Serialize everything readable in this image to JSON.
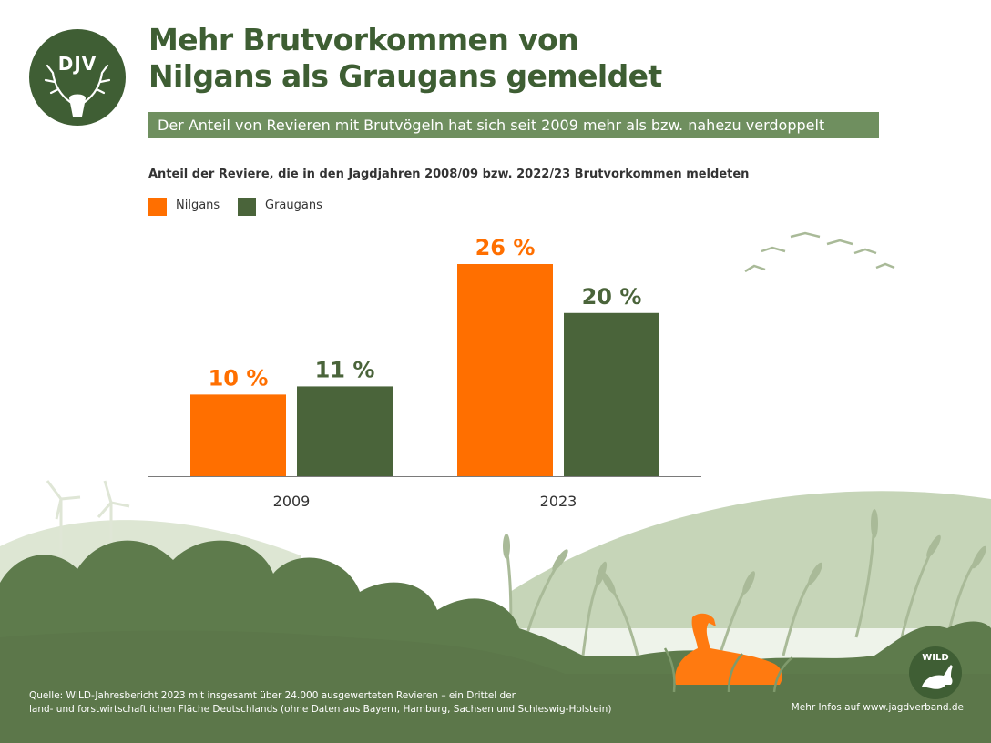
{
  "header": {
    "logo_text": "DJV",
    "title_line1": "Mehr Brutvorkommen von",
    "title_line2": "Nilgans als Graugans gemeldet",
    "subtitle": "Der Anteil von Revieren mit Brutvögeln hat sich seit 2009 mehr als bzw. nahezu verdoppelt"
  },
  "colors": {
    "nilgans": "#ff6f00",
    "graugans": "#4a643a",
    "title_green": "#3e5e33",
    "subtitle_bg": "#6f8f5f"
  },
  "chart_data": {
    "type": "bar",
    "title": "Anteil der Reviere, die in den Jagdjahren 2008/09 bzw. 2022/23 Brutvorkommen meldeten",
    "categories": [
      "2009",
      "2023"
    ],
    "series": [
      {
        "name": "Nilgans",
        "values": [
          10,
          26
        ],
        "labels": [
          "10 %",
          "26 %"
        ],
        "color": "#ff6f00"
      },
      {
        "name": "Graugans",
        "values": [
          11,
          20
        ],
        "labels": [
          "11 %",
          "20 %"
        ],
        "color": "#4a643a"
      }
    ],
    "ylim": [
      0,
      26
    ],
    "grid": false,
    "legend": "top-left"
  },
  "footer": {
    "source_line1": "Quelle: WILD-Jahresbericht 2023 mit insgesamt über 24.000 ausgewerteten Revieren – ein Drittel der",
    "source_line2": "land- und forstwirtschaftlichen Fläche Deutschlands (ohne Daten aus Bayern, Hamburg, Sachsen und Schleswig-Holstein)",
    "more_info": "Mehr Infos auf www.jagdverband.de",
    "badge_text": "WILD"
  }
}
